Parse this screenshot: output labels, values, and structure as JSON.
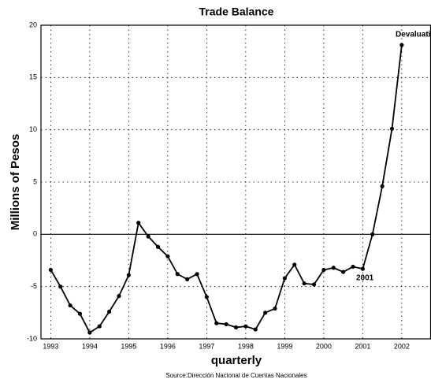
{
  "chart_data": {
    "type": "line",
    "title": "Trade Balance",
    "y_label": "Millions of Pesos",
    "x_label": "quarterly",
    "source": "Source:Dirección Nacional de Cuentas Nacionales",
    "annotations": [
      "Devaluation",
      "2001"
    ],
    "x": [
      1993,
      1993.25,
      1993.5,
      1993.75,
      1994,
      1994.25,
      1994.5,
      1994.75,
      1995,
      1995.25,
      1995.5,
      1995.75,
      1996,
      1996.25,
      1996.5,
      1996.75,
      1997,
      1997.25,
      1997.5,
      1997.75,
      1998,
      1998.25,
      1998.5,
      1998.75,
      1999,
      1999.25,
      1999.5,
      1999.75,
      2000,
      2000.25,
      2000.5,
      2000.75,
      2001,
      2001.25,
      2001.5,
      2001.75,
      2002
    ],
    "values": [
      -3.4,
      -5.0,
      -6.8,
      -7.6,
      -9.4,
      -8.8,
      -7.4,
      -5.9,
      -3.9,
      1.1,
      -0.2,
      -1.2,
      -2.1,
      -3.8,
      -4.3,
      -3.8,
      -6.0,
      -8.5,
      -8.6,
      -8.9,
      -8.8,
      -9.1,
      -7.5,
      -7.1,
      -4.2,
      -2.9,
      -4.7,
      -4.8,
      -3.4,
      -3.2,
      -3.6,
      -3.1,
      -3.3,
      0.0,
      4.6,
      10.1,
      18.1
    ],
    "color": "#000000",
    "xlim": [
      1992.75,
      2002.75
    ],
    "xticks": [
      1993,
      1994,
      1995,
      1996,
      1997,
      1998,
      1999,
      2000,
      2001,
      2002
    ],
    "ylim": [
      -10,
      20
    ],
    "yticks": [
      -10,
      -5,
      0,
      5,
      10,
      15,
      20
    ],
    "grid": true
  }
}
